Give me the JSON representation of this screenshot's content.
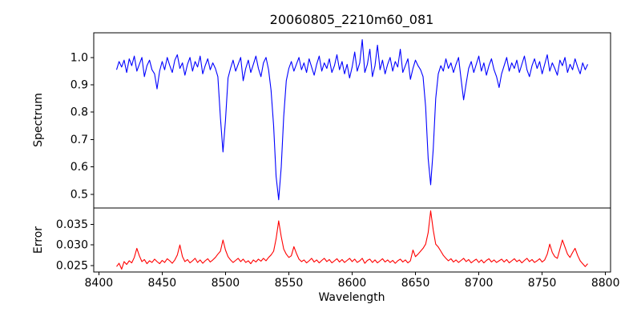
{
  "figure": {
    "title": "20060805_2210m60_081",
    "background": "#ffffff",
    "spectrum_color": "#0000ff",
    "error_color": "#ff0000"
  },
  "chart_data": [
    {
      "id": "spectrum",
      "type": "line",
      "title": "20060805_2210m60_081",
      "ylabel": "Spectrum",
      "xlabel": "",
      "line_color": "#0000ff",
      "grid": false,
      "legend": null,
      "xlim": [
        8396,
        8804
      ],
      "ylim": [
        0.45,
        1.09
      ],
      "yticks": [
        0.5,
        0.6,
        0.7,
        0.8,
        0.9,
        1.0
      ],
      "ytick_labels": [
        "0.5",
        "0.6",
        "0.7",
        "0.8",
        "0.9",
        "1.0"
      ],
      "x_start": 8414,
      "x_step": 2,
      "continuum_level": 1.0,
      "absorption_lines": {
        "centers": [
          8446,
          8498,
          8542,
          8662,
          8688,
          8716
        ],
        "core_values": [
          0.885,
          0.655,
          0.48,
          0.535,
          0.845,
          0.89
        ]
      },
      "y": [
        0.955,
        0.985,
        0.965,
        0.99,
        0.945,
        0.995,
        0.97,
        1.005,
        0.95,
        0.975,
        1.0,
        0.93,
        0.97,
        0.99,
        0.955,
        0.94,
        0.885,
        0.95,
        0.985,
        0.955,
        1.0,
        0.97,
        0.945,
        0.99,
        1.01,
        0.96,
        0.98,
        0.935,
        0.975,
        1.0,
        0.95,
        0.985,
        0.965,
        1.005,
        0.94,
        0.97,
        0.995,
        0.955,
        0.98,
        0.96,
        0.93,
        0.78,
        0.655,
        0.77,
        0.925,
        0.96,
        0.99,
        0.95,
        0.975,
        1.0,
        0.915,
        0.96,
        0.99,
        0.945,
        0.975,
        1.005,
        0.96,
        0.93,
        0.98,
        1.0,
        0.955,
        0.88,
        0.75,
        0.565,
        0.48,
        0.6,
        0.785,
        0.915,
        0.96,
        0.985,
        0.95,
        0.975,
        1.0,
        0.955,
        0.98,
        0.945,
        0.995,
        0.965,
        0.935,
        0.975,
        1.005,
        0.95,
        0.98,
        0.96,
        0.995,
        0.945,
        0.97,
        1.01,
        0.955,
        0.985,
        0.94,
        0.975,
        0.925,
        0.965,
        1.02,
        0.95,
        0.98,
        1.065,
        0.945,
        0.975,
        1.03,
        0.93,
        0.97,
        1.045,
        0.955,
        0.99,
        0.94,
        0.975,
        1.0,
        0.95,
        0.985,
        0.965,
        1.03,
        0.945,
        0.97,
        0.995,
        0.92,
        0.96,
        0.99,
        0.97,
        0.955,
        0.93,
        0.82,
        0.63,
        0.535,
        0.665,
        0.85,
        0.94,
        0.97,
        0.95,
        0.995,
        0.96,
        0.98,
        0.945,
        0.975,
        1.0,
        0.92,
        0.845,
        0.905,
        0.96,
        0.985,
        0.945,
        0.975,
        1.005,
        0.95,
        0.98,
        0.935,
        0.97,
        0.995,
        0.955,
        0.93,
        0.89,
        0.94,
        0.97,
        1.0,
        0.95,
        0.98,
        0.96,
        0.99,
        0.945,
        0.975,
        1.005,
        0.955,
        0.93,
        0.97,
        0.995,
        0.96,
        0.985,
        0.94,
        0.975,
        1.01,
        0.95,
        0.98,
        0.96,
        0.935,
        0.99,
        0.97,
        1.0,
        0.945,
        0.975,
        0.955,
        0.995,
        0.965,
        0.94,
        0.98,
        0.955,
        0.975
      ]
    },
    {
      "id": "error",
      "type": "line",
      "ylabel": "Error",
      "xlabel": "Wavelength",
      "line_color": "#ff0000",
      "grid": false,
      "legend": null,
      "xlim": [
        8396,
        8804
      ],
      "ylim": [
        0.0235,
        0.0389
      ],
      "yticks": [
        0.025,
        0.03,
        0.035
      ],
      "ytick_labels": [
        "0.025",
        "0.030",
        "0.035"
      ],
      "xticks": [
        8400,
        8450,
        8500,
        8550,
        8600,
        8650,
        8700,
        8750,
        8800
      ],
      "xtick_labels": [
        "8400",
        "8450",
        "8500",
        "8550",
        "8600",
        "8650",
        "8700",
        "8750",
        "8800"
      ],
      "x_start": 8414,
      "x_step": 2,
      "baseline_level": 0.026,
      "peaks": {
        "centers": [
          8430,
          8464,
          8498,
          8542,
          8662,
          8756,
          8766
        ],
        "peak_values": [
          0.0292,
          0.03,
          0.0312,
          0.0358,
          0.0382,
          0.0302,
          0.0312
        ]
      },
      "y": [
        0.0248,
        0.0256,
        0.0242,
        0.026,
        0.0253,
        0.0262,
        0.0257,
        0.027,
        0.0292,
        0.0274,
        0.026,
        0.0265,
        0.0255,
        0.0262,
        0.0258,
        0.0266,
        0.026,
        0.0255,
        0.0263,
        0.0258,
        0.0267,
        0.0262,
        0.0256,
        0.0264,
        0.0276,
        0.03,
        0.0272,
        0.026,
        0.0265,
        0.0257,
        0.0262,
        0.0268,
        0.0258,
        0.0264,
        0.0256,
        0.0262,
        0.0267,
        0.0259,
        0.0264,
        0.027,
        0.0278,
        0.0285,
        0.0312,
        0.0288,
        0.0272,
        0.0264,
        0.0258,
        0.0263,
        0.0268,
        0.026,
        0.0266,
        0.0258,
        0.0262,
        0.0255,
        0.0264,
        0.0259,
        0.0266,
        0.0261,
        0.0268,
        0.0262,
        0.027,
        0.0276,
        0.0285,
        0.0315,
        0.0358,
        0.032,
        0.029,
        0.0278,
        0.027,
        0.0274,
        0.0296,
        0.028,
        0.0266,
        0.026,
        0.0264,
        0.0257,
        0.0262,
        0.0268,
        0.0259,
        0.0264,
        0.0257,
        0.0263,
        0.0268,
        0.026,
        0.0265,
        0.0257,
        0.0262,
        0.0267,
        0.0259,
        0.0265,
        0.0258,
        0.0263,
        0.0268,
        0.026,
        0.0266,
        0.0258,
        0.0262,
        0.0268,
        0.0256,
        0.0263,
        0.0266,
        0.0258,
        0.0264,
        0.0257,
        0.0262,
        0.0267,
        0.0259,
        0.0264,
        0.0258,
        0.0263,
        0.0256,
        0.0262,
        0.0266,
        0.0259,
        0.0264,
        0.0257,
        0.0262,
        0.0288,
        0.0272,
        0.0278,
        0.0285,
        0.0292,
        0.0302,
        0.033,
        0.0382,
        0.0336,
        0.0302,
        0.0295,
        0.0285,
        0.0275,
        0.0268,
        0.0262,
        0.0267,
        0.0259,
        0.0264,
        0.0258,
        0.0263,
        0.0268,
        0.026,
        0.0265,
        0.0257,
        0.0262,
        0.0266,
        0.0258,
        0.0264,
        0.0257,
        0.0263,
        0.0267,
        0.0259,
        0.0264,
        0.0258,
        0.0262,
        0.0266,
        0.0259,
        0.0265,
        0.0257,
        0.0262,
        0.0267,
        0.026,
        0.0264,
        0.0257,
        0.0263,
        0.0268,
        0.026,
        0.0265,
        0.0258,
        0.0262,
        0.0267,
        0.0259,
        0.0264,
        0.0278,
        0.0302,
        0.0282,
        0.0272,
        0.0268,
        0.029,
        0.0312,
        0.0295,
        0.0278,
        0.027,
        0.0282,
        0.0292,
        0.0275,
        0.0262,
        0.0255,
        0.0248,
        0.0255
      ]
    }
  ]
}
